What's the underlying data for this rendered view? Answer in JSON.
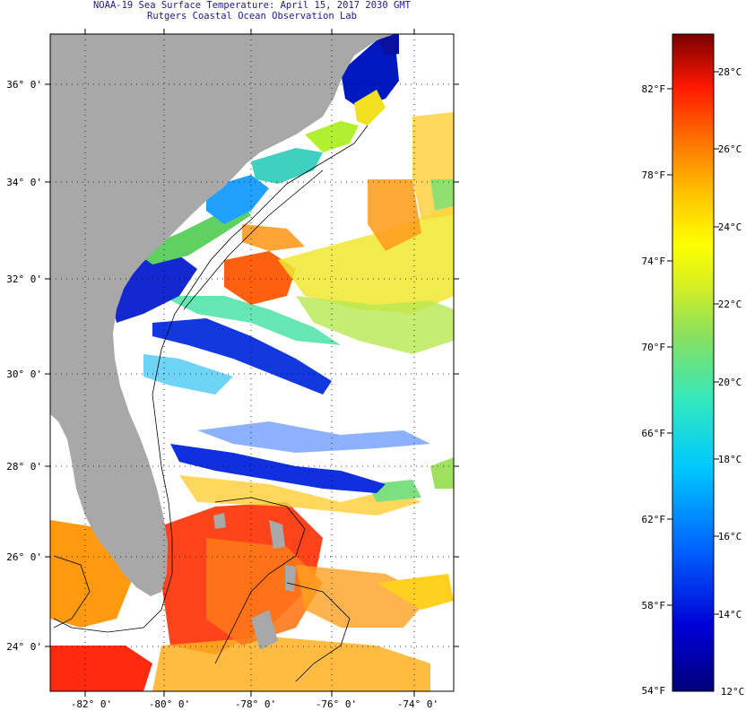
{
  "header": {
    "title": "NOAA-19 Sea Surface Temperature:  April 15, 2017 2030 GMT",
    "subtitle": "Rutgers Coastal Ocean Observation Lab"
  },
  "map": {
    "lat_labels": [
      "36° 0'",
      "34° 0'",
      "32° 0'",
      "30° 0'",
      "28° 0'",
      "26° 0'",
      "24° 0'"
    ],
    "lon_labels": [
      "-82° 0'",
      "-80° 0'",
      "-78° 0'",
      "-76° 0'",
      "-74° 0'"
    ]
  },
  "colorbar": {
    "f_labels": [
      "82°F",
      "78°F",
      "74°F",
      "70°F",
      "66°F",
      "62°F",
      "58°F",
      "54°F"
    ],
    "c_labels": [
      "28°C",
      "26°C",
      "24°C",
      "22°C",
      "20°C",
      "18°C",
      "16°C",
      "14°C",
      "12°C"
    ],
    "min_f": 54,
    "max_f": 85
  },
  "colors": {
    "land": "#a8a8a8",
    "title": "#1a1a9a",
    "no_data": "#ffffff"
  }
}
